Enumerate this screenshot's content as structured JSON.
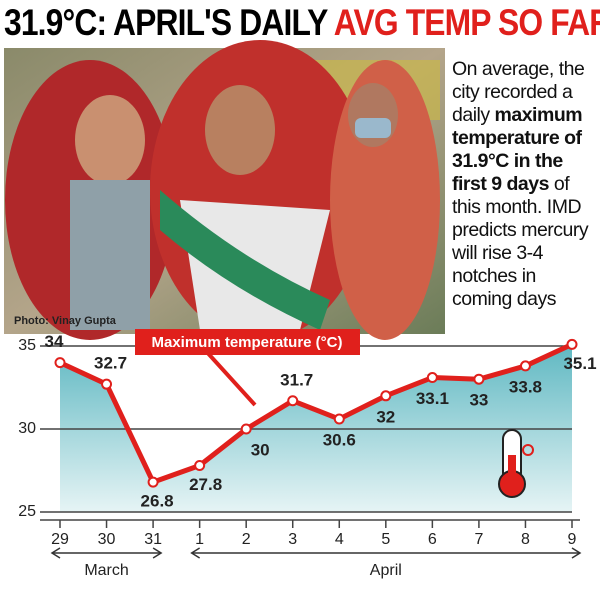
{
  "title_black": "31.9°C: APRIL'S DAILY",
  "title_red": "AVG TEMP SO FAR",
  "sidebar": {
    "before": "On average, the city recorded a daily",
    "bold": "maximum temperature of 31.9°C in the first 9 days",
    "after": "of this month. IMD predicts mercury will rise 3-4 notches in coming days"
  },
  "photo_credit": "Photo: Vinay Gupta",
  "chart_data": {
    "type": "line",
    "annotation": "Maximum temperature (°C)",
    "categories": [
      "29",
      "30",
      "31",
      "1",
      "2",
      "3",
      "4",
      "5",
      "6",
      "7",
      "8",
      "9"
    ],
    "values": [
      34,
      32.7,
      26.8,
      27.8,
      30,
      31.7,
      30.6,
      32,
      33.1,
      33,
      33.8,
      35.1
    ],
    "color": "#e0201c",
    "groups": [
      {
        "label": "March",
        "from": 0,
        "to": 2
      },
      {
        "label": "April",
        "from": 3,
        "to": 11
      }
    ],
    "ylim": [
      25,
      35
    ],
    "yticks": [
      25,
      30,
      35
    ],
    "grid": true
  }
}
